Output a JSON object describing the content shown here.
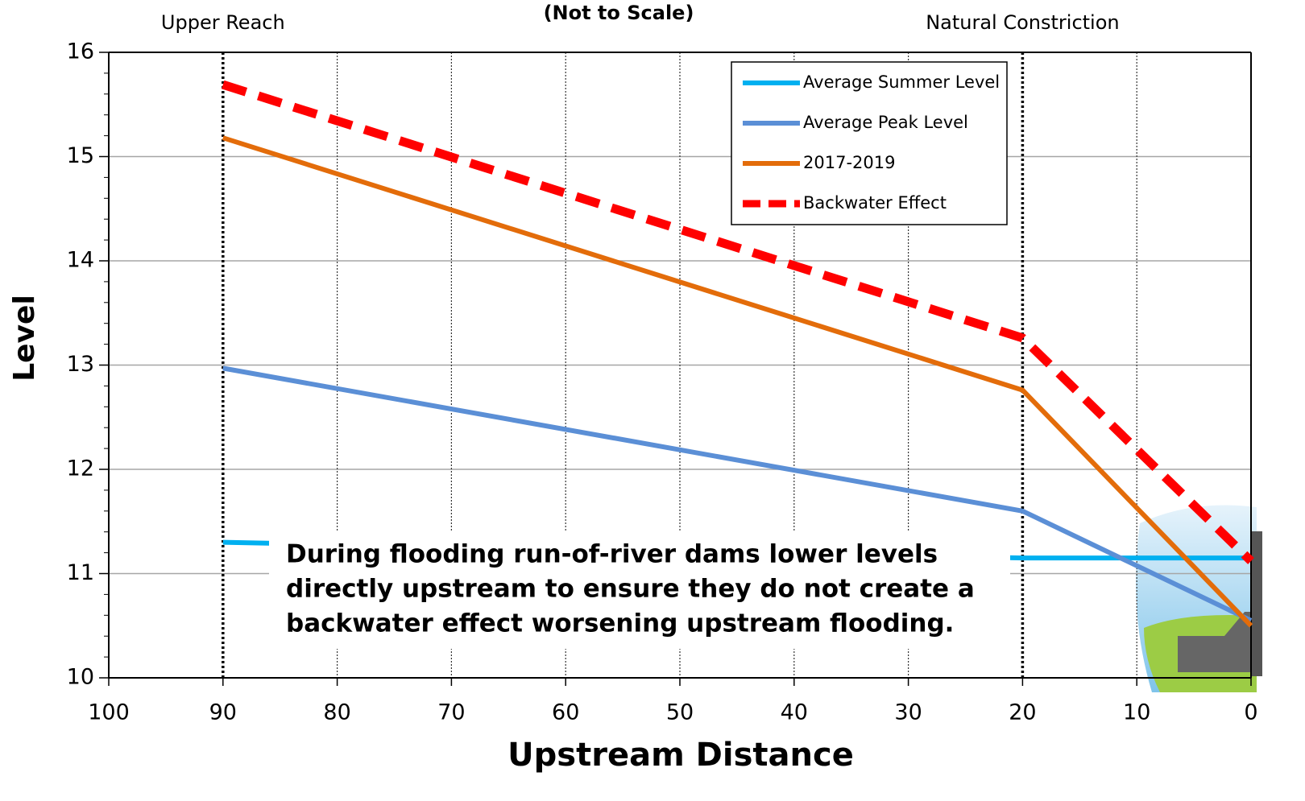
{
  "chart_data": {
    "type": "line",
    "subtitle": "(Not to Scale)",
    "x_label": "Upstream Distance",
    "y_label": "Level",
    "xlim": [
      100,
      0
    ],
    "xticks": [
      100,
      90,
      80,
      70,
      60,
      50,
      40,
      30,
      20,
      10,
      0
    ],
    "ylim": [
      10,
      16
    ],
    "yticks": [
      10,
      11,
      12,
      13,
      14,
      15,
      16
    ],
    "grid": true,
    "legend": "upper right",
    "reference_lines": [
      {
        "x": 90,
        "label": "Upper Reach"
      },
      {
        "x": 20,
        "label": "Natural Constriction"
      }
    ],
    "annotation": [
      "During flooding run-of-river dams lower levels",
      "directly upstream to ensure they do not create a",
      "backwater effect worsening upstream flooding."
    ],
    "series": [
      {
        "name": "Average Summer Level",
        "color": "#00b0f0",
        "style": "solid",
        "x": [
          90,
          20,
          0
        ],
        "values": [
          11.3,
          11.15,
          11.15
        ]
      },
      {
        "name": "Average Peak Level",
        "color": "#5b8fd6",
        "style": "solid",
        "x": [
          90,
          20,
          0
        ],
        "values": [
          12.97,
          11.6,
          10.55
        ]
      },
      {
        "name": "2017-2019",
        "color": "#e36c0a",
        "style": "solid",
        "x": [
          90,
          20,
          0
        ],
        "values": [
          15.18,
          12.76,
          10.5
        ]
      },
      {
        "name": "Backwater Effect",
        "color": "#ff0000",
        "style": "dashed",
        "x": [
          90,
          20,
          0
        ],
        "values": [
          15.69,
          13.26,
          11.12
        ]
      }
    ]
  }
}
